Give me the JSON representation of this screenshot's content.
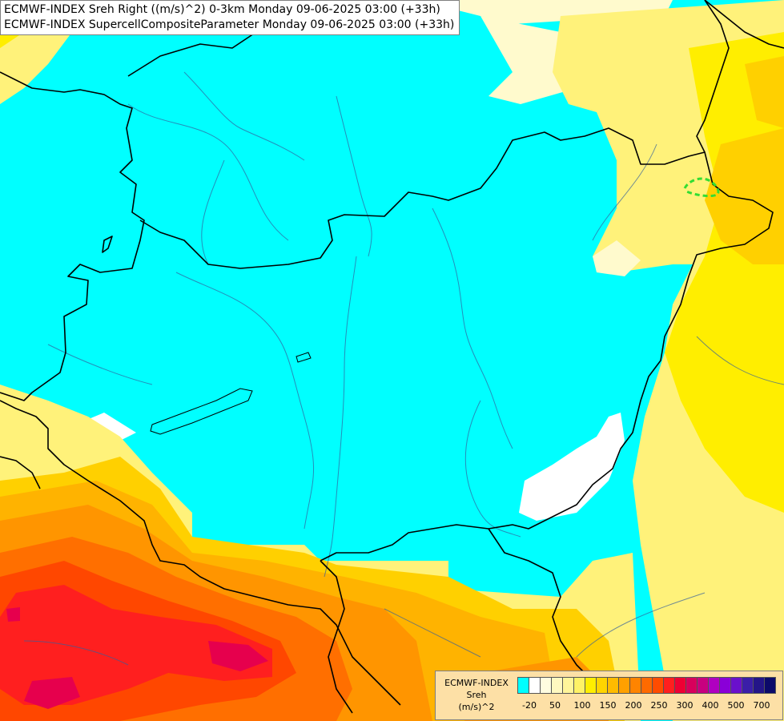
{
  "header": {
    "line1": "ECMWF-INDEX Sreh Right ((m/s)^2) 0-3km Monday 09-06-2025 03:00 (+33h)",
    "line2": "ECMWF-INDEX SupercellCompositeParameter Monday 09-06-2025 03:00 (+33h)"
  },
  "legend": {
    "line1": "ECMWF-INDEX",
    "line2": "Sreh",
    "line3": "(m/s)^2",
    "colors": [
      "#00ffff",
      "#ffffff",
      "#fffde0",
      "#fff8c0",
      "#fff59a",
      "#fff266",
      "#ffee00",
      "#ffd400",
      "#ffbb00",
      "#ffa000",
      "#ff8400",
      "#ff6a00",
      "#ff4c00",
      "#ff1f1f",
      "#ee0033",
      "#d8005c",
      "#c8007f",
      "#b000c0",
      "#8a00d8",
      "#6a10cc",
      "#3b1ea8",
      "#241588",
      "#0c0a6a"
    ],
    "tick_labels": [
      "-20",
      "50",
      "100",
      "150",
      "200",
      "250",
      "300",
      "400",
      "500",
      "700"
    ]
  },
  "map_colors": {
    "cyan": "#00ffff",
    "white": "#ffffff",
    "pale_yellow": "#fffacd",
    "light_yellow": "#fff27a",
    "yellow": "#ffee00",
    "gold": "#ffd000",
    "light_orange": "#ffb300",
    "orange": "#ff9500",
    "deep_orange": "#ff6f00",
    "red_orange": "#ff4700",
    "red": "#ff1f1f",
    "crimson": "#e6004d",
    "border": "#000000",
    "river": "#335f9c",
    "parameter_contour": "#33dd33"
  }
}
